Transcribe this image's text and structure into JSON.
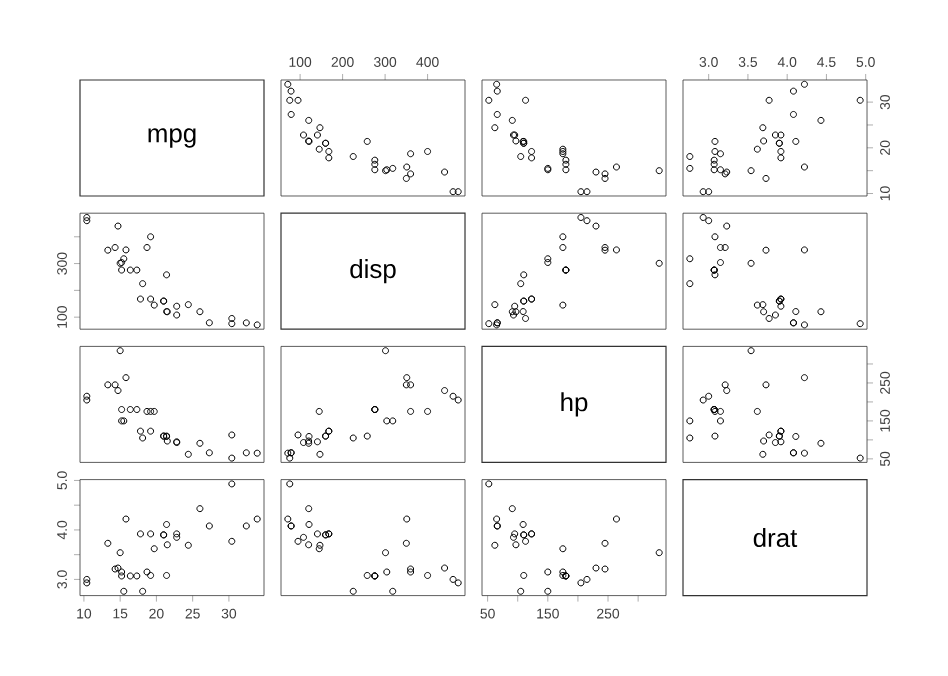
{
  "chart_data": [
    {
      "type": "other",
      "title": "mpg"
    },
    {
      "type": "scatter",
      "color": "#000000",
      "marker": "circle",
      "tick_labels": "x",
      "xlim": [
        55.06,
        488.04
      ],
      "ylim": [
        9.46,
        34.84
      ],
      "xticks": [
        100,
        200,
        300,
        400
      ],
      "x": [
        160,
        160,
        108,
        258,
        360,
        225,
        360,
        146.7,
        140.8,
        167.6,
        167.6,
        275.8,
        275.8,
        275.8,
        472,
        460,
        440,
        78.7,
        75.7,
        71.1,
        120.1,
        318,
        304,
        350,
        400,
        79,
        120.3,
        95.1,
        351,
        145,
        301,
        121
      ],
      "values": [
        21.0,
        21.0,
        22.8,
        21.4,
        18.7,
        18.1,
        14.3,
        24.4,
        22.8,
        19.2,
        17.8,
        16.4,
        17.3,
        15.2,
        10.4,
        10.4,
        14.7,
        32.4,
        30.4,
        33.9,
        21.5,
        15.5,
        15.2,
        13.3,
        19.2,
        27.3,
        26.0,
        30.4,
        15.8,
        19.7,
        15.0,
        21.4
      ]
    },
    {
      "type": "scatter",
      "color": "#000000",
      "marker": "circle",
      "tick_labels": false,
      "xlim": [
        40.68,
        346.32
      ],
      "ylim": [
        9.46,
        34.84
      ],
      "x": [
        110,
        110,
        93,
        110,
        175,
        105,
        245,
        62,
        95,
        123,
        123,
        180,
        180,
        180,
        205,
        215,
        230,
        66,
        52,
        65,
        97,
        150,
        150,
        245,
        175,
        66,
        91,
        113,
        264,
        175,
        335,
        109
      ],
      "values": [
        21.0,
        21.0,
        22.8,
        21.4,
        18.7,
        18.1,
        14.3,
        24.4,
        22.8,
        19.2,
        17.8,
        16.4,
        17.3,
        15.2,
        10.4,
        10.4,
        14.7,
        32.4,
        30.4,
        33.9,
        21.5,
        15.5,
        15.2,
        13.3,
        19.2,
        27.3,
        26.0,
        30.4,
        15.8,
        19.7,
        15.0,
        21.4
      ]
    },
    {
      "type": "scatter",
      "color": "#000000",
      "marker": "circle",
      "xlim": [
        2.673,
        5.017
      ],
      "ylim": [
        9.46,
        34.84
      ],
      "xticks": [
        {
          "value": 3,
          "label": "3.0"
        },
        3.5,
        {
          "value": 4,
          "label": "4.0"
        },
        4.5,
        {
          "value": 5,
          "label": "5.0"
        }
      ],
      "yticks": [
        10,
        {
          "value": 15,
          "label": null
        },
        20,
        {
          "value": 25,
          "label": null
        },
        30
      ],
      "x": [
        3.9,
        3.9,
        3.85,
        3.08,
        3.15,
        2.76,
        3.21,
        3.69,
        3.92,
        3.92,
        3.92,
        3.07,
        3.07,
        3.07,
        2.93,
        3.0,
        3.23,
        4.08,
        4.93,
        4.22,
        3.7,
        2.76,
        3.15,
        3.73,
        3.08,
        4.08,
        4.43,
        3.77,
        4.22,
        3.62,
        3.54,
        4.11
      ],
      "values": [
        21.0,
        21.0,
        22.8,
        21.4,
        18.7,
        18.1,
        14.3,
        24.4,
        22.8,
        19.2,
        17.8,
        16.4,
        17.3,
        15.2,
        10.4,
        10.4,
        14.7,
        32.4,
        30.4,
        33.9,
        21.5,
        15.5,
        15.2,
        13.3,
        19.2,
        27.3,
        26.0,
        30.4,
        15.8,
        19.7,
        15.0,
        21.4
      ]
    },
    {
      "type": "scatter",
      "color": "#000000",
      "marker": "circle",
      "tick_labels": "y",
      "xlim": [
        9.46,
        34.84
      ],
      "ylim": [
        55.06,
        488.04
      ],
      "yticks": [
        100,
        {
          "value": 200,
          "label": null
        },
        300,
        {
          "value": 400,
          "label": null
        }
      ],
      "x": [
        21.0,
        21.0,
        22.8,
        21.4,
        18.7,
        18.1,
        14.3,
        24.4,
        22.8,
        19.2,
        17.8,
        16.4,
        17.3,
        15.2,
        10.4,
        10.4,
        14.7,
        32.4,
        30.4,
        33.9,
        21.5,
        15.5,
        15.2,
        13.3,
        19.2,
        27.3,
        26.0,
        30.4,
        15.8,
        19.7,
        15.0,
        21.4
      ],
      "values": [
        160,
        160,
        108,
        258,
        360,
        225,
        360,
        146.7,
        140.8,
        167.6,
        167.6,
        275.8,
        275.8,
        275.8,
        472,
        460,
        440,
        78.7,
        75.7,
        71.1,
        120.1,
        318,
        304,
        350,
        400,
        79,
        120.3,
        95.1,
        351,
        145,
        301,
        121
      ]
    },
    {
      "type": "other",
      "title": "disp"
    },
    {
      "type": "scatter",
      "color": "#000000",
      "marker": "circle",
      "tick_labels": false,
      "xlim": [
        40.68,
        346.32
      ],
      "ylim": [
        55.06,
        488.04
      ],
      "x": [
        110,
        110,
        93,
        110,
        175,
        105,
        245,
        62,
        95,
        123,
        123,
        180,
        180,
        180,
        205,
        215,
        230,
        66,
        52,
        65,
        97,
        150,
        150,
        245,
        175,
        66,
        91,
        113,
        264,
        175,
        335,
        109
      ],
      "values": [
        160,
        160,
        108,
        258,
        360,
        225,
        360,
        146.7,
        140.8,
        167.6,
        167.6,
        275.8,
        275.8,
        275.8,
        472,
        460,
        440,
        78.7,
        75.7,
        71.1,
        120.1,
        318,
        304,
        350,
        400,
        79,
        120.3,
        95.1,
        351,
        145,
        301,
        121
      ]
    },
    {
      "type": "scatter",
      "color": "#000000",
      "marker": "circle",
      "tick_labels": false,
      "xlim": [
        2.673,
        5.017
      ],
      "ylim": [
        55.06,
        488.04
      ],
      "x": [
        3.9,
        3.9,
        3.85,
        3.08,
        3.15,
        2.76,
        3.21,
        3.69,
        3.92,
        3.92,
        3.92,
        3.07,
        3.07,
        3.07,
        2.93,
        3.0,
        3.23,
        4.08,
        4.93,
        4.22,
        3.7,
        2.76,
        3.15,
        3.73,
        3.08,
        4.08,
        4.43,
        3.77,
        4.22,
        3.62,
        3.54,
        4.11
      ],
      "values": [
        160,
        160,
        108,
        258,
        360,
        225,
        360,
        146.7,
        140.8,
        167.6,
        167.6,
        275.8,
        275.8,
        275.8,
        472,
        460,
        440,
        78.7,
        75.7,
        71.1,
        120.1,
        318,
        304,
        350,
        400,
        79,
        120.3,
        95.1,
        351,
        145,
        301,
        121
      ]
    },
    {
      "type": "scatter",
      "color": "#000000",
      "marker": "circle",
      "tick_labels": false,
      "xlim": [
        9.46,
        34.84
      ],
      "ylim": [
        40.68,
        346.32
      ],
      "x": [
        21.0,
        21.0,
        22.8,
        21.4,
        18.7,
        18.1,
        14.3,
        24.4,
        22.8,
        19.2,
        17.8,
        16.4,
        17.3,
        15.2,
        10.4,
        10.4,
        14.7,
        32.4,
        30.4,
        33.9,
        21.5,
        15.5,
        15.2,
        13.3,
        19.2,
        27.3,
        26.0,
        30.4,
        15.8,
        19.7,
        15.0,
        21.4
      ],
      "values": [
        110,
        110,
        93,
        110,
        175,
        105,
        245,
        62,
        95,
        123,
        123,
        180,
        180,
        180,
        205,
        215,
        230,
        66,
        52,
        65,
        97,
        150,
        150,
        245,
        175,
        66,
        91,
        113,
        264,
        175,
        335,
        109
      ]
    },
    {
      "type": "scatter",
      "color": "#000000",
      "marker": "circle",
      "tick_labels": false,
      "xlim": [
        55.06,
        488.04
      ],
      "ylim": [
        40.68,
        346.32
      ],
      "x": [
        160,
        160,
        108,
        258,
        360,
        225,
        360,
        146.7,
        140.8,
        167.6,
        167.6,
        275.8,
        275.8,
        275.8,
        472,
        460,
        440,
        78.7,
        75.7,
        71.1,
        120.1,
        318,
        304,
        350,
        400,
        79,
        120.3,
        95.1,
        351,
        145,
        301,
        121
      ],
      "values": [
        110,
        110,
        93,
        110,
        175,
        105,
        245,
        62,
        95,
        123,
        123,
        180,
        180,
        180,
        205,
        215,
        230,
        66,
        52,
        65,
        97,
        150,
        150,
        245,
        175,
        66,
        91,
        113,
        264,
        175,
        335,
        109
      ]
    },
    {
      "type": "other",
      "title": "hp"
    },
    {
      "type": "scatter",
      "color": "#000000",
      "marker": "circle",
      "tick_labels": "y",
      "xlim": [
        2.673,
        5.017
      ],
      "ylim": [
        40.68,
        346.32
      ],
      "yticks": [
        50,
        {
          "value": 100,
          "label": null
        },
        150,
        {
          "value": 200,
          "label": null
        },
        250,
        {
          "value": 300,
          "label": null
        }
      ],
      "x": [
        3.9,
        3.9,
        3.85,
        3.08,
        3.15,
        2.76,
        3.21,
        3.69,
        3.92,
        3.92,
        3.92,
        3.07,
        3.07,
        3.07,
        2.93,
        3.0,
        3.23,
        4.08,
        4.93,
        4.22,
        3.7,
        2.76,
        3.15,
        3.73,
        3.08,
        4.08,
        4.43,
        3.77,
        4.22,
        3.62,
        3.54,
        4.11
      ],
      "values": [
        110,
        110,
        93,
        110,
        175,
        105,
        245,
        62,
        95,
        123,
        123,
        180,
        180,
        180,
        205,
        215,
        230,
        66,
        52,
        65,
        97,
        150,
        150,
        245,
        175,
        66,
        91,
        113,
        264,
        175,
        335,
        109
      ]
    },
    {
      "type": "scatter",
      "color": "#000000",
      "marker": "circle",
      "xlim": [
        9.46,
        34.84
      ],
      "ylim": [
        2.673,
        5.017
      ],
      "xticks": [
        10,
        15,
        20,
        25,
        30
      ],
      "yticks": [
        {
          "value": 3,
          "label": "3.0"
        },
        {
          "value": 3.5,
          "label": null
        },
        {
          "value": 4,
          "label": "4.0"
        },
        {
          "value": 4.5,
          "label": null
        },
        {
          "value": 5,
          "label": "5.0"
        }
      ],
      "x": [
        21.0,
        21.0,
        22.8,
        21.4,
        18.7,
        18.1,
        14.3,
        24.4,
        22.8,
        19.2,
        17.8,
        16.4,
        17.3,
        15.2,
        10.4,
        10.4,
        14.7,
        32.4,
        30.4,
        33.9,
        21.5,
        15.5,
        15.2,
        13.3,
        19.2,
        27.3,
        26.0,
        30.4,
        15.8,
        19.7,
        15.0,
        21.4
      ],
      "values": [
        3.9,
        3.9,
        3.85,
        3.08,
        3.15,
        2.76,
        3.21,
        3.69,
        3.92,
        3.92,
        3.92,
        3.07,
        3.07,
        3.07,
        2.93,
        3.0,
        3.23,
        4.08,
        4.93,
        4.22,
        3.7,
        2.76,
        3.15,
        3.73,
        3.08,
        4.08,
        4.43,
        3.77,
        4.22,
        3.62,
        3.54,
        4.11
      ]
    },
    {
      "type": "scatter",
      "color": "#000000",
      "marker": "circle",
      "tick_labels": false,
      "xlim": [
        55.06,
        488.04
      ],
      "ylim": [
        2.673,
        5.017
      ],
      "x": [
        160,
        160,
        108,
        258,
        360,
        225,
        360,
        146.7,
        140.8,
        167.6,
        167.6,
        275.8,
        275.8,
        275.8,
        472,
        460,
        440,
        78.7,
        75.7,
        71.1,
        120.1,
        318,
        304,
        350,
        400,
        79,
        120.3,
        95.1,
        351,
        145,
        301,
        121
      ],
      "values": [
        3.9,
        3.9,
        3.85,
        3.08,
        3.15,
        2.76,
        3.21,
        3.69,
        3.92,
        3.92,
        3.92,
        3.07,
        3.07,
        3.07,
        2.93,
        3.0,
        3.23,
        4.08,
        4.93,
        4.22,
        3.7,
        2.76,
        3.15,
        3.73,
        3.08,
        4.08,
        4.43,
        3.77,
        4.22,
        3.62,
        3.54,
        4.11
      ]
    },
    {
      "type": "scatter",
      "color": "#000000",
      "marker": "circle",
      "tick_labels": "x",
      "xlim": [
        40.68,
        346.32
      ],
      "ylim": [
        2.673,
        5.017
      ],
      "xticks": [
        50,
        {
          "value": 100,
          "label": null
        },
        150,
        {
          "value": 200,
          "label": null
        },
        250,
        {
          "value": 300,
          "label": null
        }
      ],
      "x": [
        110,
        110,
        93,
        110,
        175,
        105,
        245,
        62,
        95,
        123,
        123,
        180,
        180,
        180,
        205,
        215,
        230,
        66,
        52,
        65,
        97,
        150,
        150,
        245,
        175,
        66,
        91,
        113,
        264,
        175,
        335,
        109
      ],
      "values": [
        3.9,
        3.9,
        3.85,
        3.08,
        3.15,
        2.76,
        3.21,
        3.69,
        3.92,
        3.92,
        3.92,
        3.07,
        3.07,
        3.07,
        2.93,
        3.0,
        3.23,
        4.08,
        4.93,
        4.22,
        3.7,
        2.76,
        3.15,
        3.73,
        3.08,
        4.08,
        4.43,
        3.77,
        4.22,
        3.62,
        3.54,
        4.11
      ]
    },
    {
      "type": "other",
      "title": "drat"
    }
  ]
}
